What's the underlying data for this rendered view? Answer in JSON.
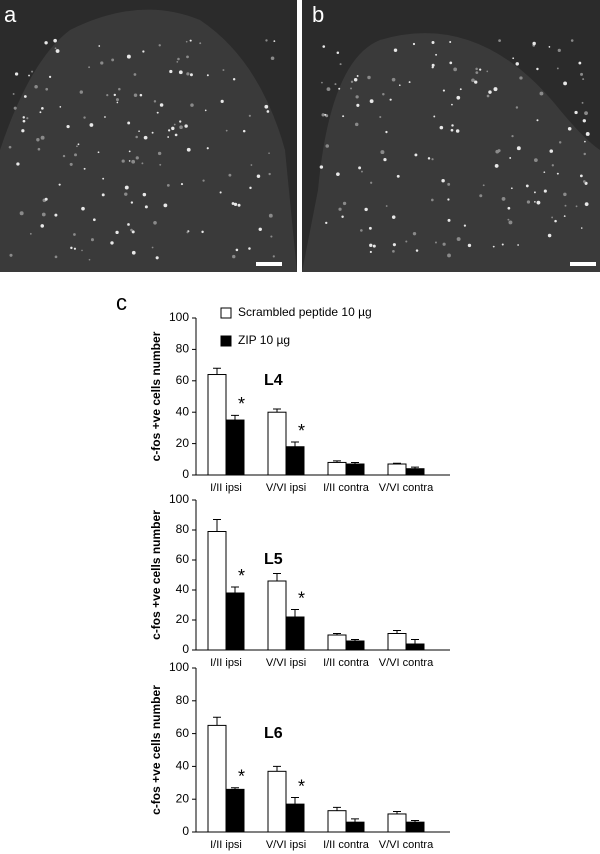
{
  "panel_labels": [
    "a",
    "b",
    "c"
  ],
  "chart_data": [
    {
      "type": "bar",
      "title": "L4",
      "ylabel": "c-fos +ve cells number",
      "categories": [
        "I/II ipsi",
        "V/VI ipsi",
        "I/II contra",
        "V/VI contra"
      ],
      "series": [
        {
          "name": "Scrambled peptide 10 µg",
          "color": "#ffffff",
          "values": [
            64,
            40,
            8,
            7
          ],
          "errors": [
            4,
            2,
            1,
            0.5
          ]
        },
        {
          "name": "ZIP 10 µg",
          "color": "#000000",
          "values": [
            35,
            18,
            7,
            4
          ],
          "errors": [
            3,
            3,
            1,
            1
          ]
        }
      ],
      "significance": [
        "*",
        "*",
        null,
        null
      ],
      "ylim": [
        0,
        100
      ],
      "yticks": [
        0,
        20,
        40,
        60,
        80,
        100
      ]
    },
    {
      "type": "bar",
      "title": "L5",
      "ylabel": "c-fos +ve cells number",
      "categories": [
        "I/II ipsi",
        "V/VI ipsi",
        "I/II contra",
        "V/VI contra"
      ],
      "series": [
        {
          "color": "#ffffff",
          "values": [
            79,
            46,
            10,
            11
          ],
          "errors": [
            8,
            5,
            1,
            2
          ]
        },
        {
          "color": "#000000",
          "values": [
            38,
            22,
            6,
            4
          ],
          "errors": [
            4,
            5,
            1,
            3
          ]
        }
      ],
      "significance": [
        "*",
        "*",
        null,
        null
      ],
      "ylim": [
        0,
        100
      ],
      "yticks": [
        0,
        20,
        40,
        60,
        80,
        100
      ]
    },
    {
      "type": "bar",
      "title": "L6",
      "ylabel": "c-fos +ve cells number",
      "categories": [
        "I/II ipsi",
        "V/VI ipsi",
        "I/II contra",
        "V/VI contra"
      ],
      "series": [
        {
          "color": "#ffffff",
          "values": [
            65,
            37,
            13,
            11
          ],
          "errors": [
            5,
            3,
            2,
            1.5
          ]
        },
        {
          "color": "#000000",
          "values": [
            26,
            17,
            6,
            6
          ],
          "errors": [
            1,
            4,
            2,
            1
          ]
        }
      ],
      "significance": [
        "*",
        "*",
        null,
        null
      ],
      "ylim": [
        0,
        100
      ],
      "yticks": [
        0,
        20,
        40,
        60,
        80,
        100
      ]
    }
  ]
}
